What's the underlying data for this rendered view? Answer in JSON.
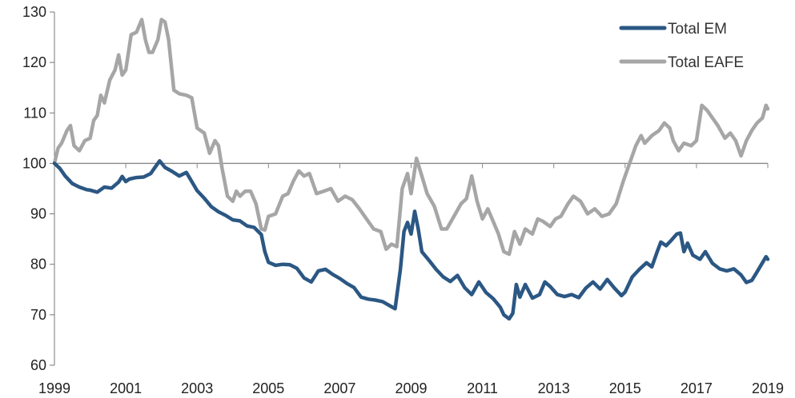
{
  "chart_data": {
    "type": "line",
    "title": "",
    "xlabel": "",
    "ylabel": "",
    "xlim": [
      1999,
      2019
    ],
    "ylim": [
      60,
      130
    ],
    "y_ticks": [
      60,
      70,
      80,
      90,
      100,
      110,
      120,
      130
    ],
    "x_ticks": [
      1999,
      2001,
      2003,
      2005,
      2007,
      2009,
      2011,
      2013,
      2015,
      2017,
      2019
    ],
    "baseline": 100,
    "grid": false,
    "legend_position": "top-right",
    "series": [
      {
        "name": "Total EM",
        "color": "#2b5783",
        "points": [
          [
            1999.0,
            100
          ],
          [
            1999.15,
            99
          ],
          [
            1999.3,
            97.5
          ],
          [
            1999.5,
            96
          ],
          [
            1999.7,
            95.3
          ],
          [
            1999.9,
            94.8
          ],
          [
            2000.0,
            94.7
          ],
          [
            2000.2,
            94.3
          ],
          [
            2000.4,
            95.3
          ],
          [
            2000.6,
            95.1
          ],
          [
            2000.8,
            96.3
          ],
          [
            2000.9,
            97.4
          ],
          [
            2001.0,
            96.4
          ],
          [
            2001.1,
            96.9
          ],
          [
            2001.3,
            97.2
          ],
          [
            2001.5,
            97.3
          ],
          [
            2001.7,
            98.0
          ],
          [
            2001.8,
            99.0
          ],
          [
            2001.95,
            100.5
          ],
          [
            2002.1,
            99.2
          ],
          [
            2002.3,
            98.4
          ],
          [
            2002.5,
            97.5
          ],
          [
            2002.7,
            98.2
          ],
          [
            2002.8,
            97.0
          ],
          [
            2003.0,
            94.6
          ],
          [
            2003.2,
            93.1
          ],
          [
            2003.4,
            91.4
          ],
          [
            2003.6,
            90.4
          ],
          [
            2003.8,
            89.7
          ],
          [
            2004.0,
            88.8
          ],
          [
            2004.2,
            88.6
          ],
          [
            2004.4,
            87.6
          ],
          [
            2004.6,
            87.3
          ],
          [
            2004.8,
            85.9
          ],
          [
            2004.9,
            82.5
          ],
          [
            2005.0,
            80.4
          ],
          [
            2005.2,
            79.8
          ],
          [
            2005.4,
            80.0
          ],
          [
            2005.6,
            79.9
          ],
          [
            2005.8,
            79.2
          ],
          [
            2006.0,
            77.3
          ],
          [
            2006.2,
            76.5
          ],
          [
            2006.4,
            78.7
          ],
          [
            2006.6,
            79.0
          ],
          [
            2006.8,
            78.0
          ],
          [
            2007.0,
            77.2
          ],
          [
            2007.2,
            76.2
          ],
          [
            2007.4,
            75.4
          ],
          [
            2007.6,
            73.5
          ],
          [
            2007.8,
            73.1
          ],
          [
            2008.0,
            72.9
          ],
          [
            2008.2,
            72.6
          ],
          [
            2008.4,
            71.8
          ],
          [
            2008.55,
            71.2
          ],
          [
            2008.7,
            79.0
          ],
          [
            2008.8,
            86.5
          ],
          [
            2008.9,
            88.3
          ],
          [
            2009.0,
            86.0
          ],
          [
            2009.1,
            90.5
          ],
          [
            2009.2,
            87.0
          ],
          [
            2009.3,
            82.5
          ],
          [
            2009.5,
            80.8
          ],
          [
            2009.7,
            79.0
          ],
          [
            2009.9,
            77.5
          ],
          [
            2010.1,
            76.6
          ],
          [
            2010.3,
            77.8
          ],
          [
            2010.5,
            75.4
          ],
          [
            2010.7,
            74.0
          ],
          [
            2010.9,
            76.5
          ],
          [
            2011.1,
            74.4
          ],
          [
            2011.3,
            73.2
          ],
          [
            2011.5,
            71.5
          ],
          [
            2011.6,
            70.0
          ],
          [
            2011.75,
            69.2
          ],
          [
            2011.85,
            70.3
          ],
          [
            2011.95,
            76.0
          ],
          [
            2012.05,
            73.5
          ],
          [
            2012.2,
            76.0
          ],
          [
            2012.4,
            73.3
          ],
          [
            2012.6,
            74.0
          ],
          [
            2012.75,
            76.5
          ],
          [
            2012.9,
            75.6
          ],
          [
            2013.1,
            74.0
          ],
          [
            2013.3,
            73.6
          ],
          [
            2013.5,
            74.0
          ],
          [
            2013.7,
            73.4
          ],
          [
            2013.9,
            75.3
          ],
          [
            2014.1,
            76.5
          ],
          [
            2014.3,
            75.1
          ],
          [
            2014.5,
            77.0
          ],
          [
            2014.7,
            75.3
          ],
          [
            2014.9,
            73.8
          ],
          [
            2015.0,
            74.5
          ],
          [
            2015.2,
            77.5
          ],
          [
            2015.4,
            79.0
          ],
          [
            2015.6,
            80.3
          ],
          [
            2015.75,
            79.5
          ],
          [
            2015.9,
            82.5
          ],
          [
            2016.0,
            84.4
          ],
          [
            2016.15,
            83.7
          ],
          [
            2016.3,
            84.8
          ],
          [
            2016.45,
            86.0
          ],
          [
            2016.55,
            86.2
          ],
          [
            2016.65,
            82.5
          ],
          [
            2016.75,
            84.2
          ],
          [
            2016.9,
            81.8
          ],
          [
            2017.1,
            81.0
          ],
          [
            2017.25,
            82.5
          ],
          [
            2017.45,
            80.2
          ],
          [
            2017.65,
            79.1
          ],
          [
            2017.85,
            78.7
          ],
          [
            2018.05,
            79.1
          ],
          [
            2018.25,
            77.9
          ],
          [
            2018.4,
            76.4
          ],
          [
            2018.55,
            76.8
          ],
          [
            2018.7,
            78.5
          ],
          [
            2018.85,
            80.3
          ],
          [
            2018.95,
            81.5
          ],
          [
            2019.0,
            81.0
          ]
        ]
      },
      {
        "name": "Total EAFE",
        "color": "#a6a6a6",
        "points": [
          [
            1999.0,
            100
          ],
          [
            1999.1,
            103.0
          ],
          [
            1999.2,
            104.0
          ],
          [
            1999.35,
            106.5
          ],
          [
            1999.45,
            107.5
          ],
          [
            1999.55,
            103.5
          ],
          [
            1999.7,
            102.5
          ],
          [
            1999.85,
            104.5
          ],
          [
            2000.0,
            105.0
          ],
          [
            2000.1,
            108.5
          ],
          [
            2000.2,
            109.5
          ],
          [
            2000.3,
            113.5
          ],
          [
            2000.4,
            112.0
          ],
          [
            2000.55,
            116.5
          ],
          [
            2000.7,
            118.5
          ],
          [
            2000.8,
            121.5
          ],
          [
            2000.9,
            117.5
          ],
          [
            2001.0,
            118.5
          ],
          [
            2001.15,
            125.5
          ],
          [
            2001.3,
            126.0
          ],
          [
            2001.45,
            128.5
          ],
          [
            2001.55,
            124.5
          ],
          [
            2001.65,
            122.0
          ],
          [
            2001.75,
            122.0
          ],
          [
            2001.9,
            124.5
          ],
          [
            2002.0,
            128.5
          ],
          [
            2002.1,
            128.0
          ],
          [
            2002.2,
            124.5
          ],
          [
            2002.35,
            114.5
          ],
          [
            2002.5,
            113.8
          ],
          [
            2002.7,
            113.5
          ],
          [
            2002.85,
            113.0
          ],
          [
            2003.0,
            107.0
          ],
          [
            2003.2,
            106.0
          ],
          [
            2003.35,
            102.0
          ],
          [
            2003.5,
            104.5
          ],
          [
            2003.6,
            103.5
          ],
          [
            2003.7,
            99.0
          ],
          [
            2003.85,
            93.5
          ],
          [
            2004.0,
            92.5
          ],
          [
            2004.1,
            94.5
          ],
          [
            2004.2,
            93.5
          ],
          [
            2004.35,
            94.5
          ],
          [
            2004.5,
            94.5
          ],
          [
            2004.65,
            92.0
          ],
          [
            2004.8,
            87.0
          ],
          [
            2004.9,
            86.8
          ],
          [
            2005.0,
            89.5
          ],
          [
            2005.2,
            90.0
          ],
          [
            2005.4,
            93.5
          ],
          [
            2005.55,
            94.0
          ],
          [
            2005.7,
            96.5
          ],
          [
            2005.85,
            98.5
          ],
          [
            2006.0,
            97.5
          ],
          [
            2006.15,
            98.0
          ],
          [
            2006.35,
            94.0
          ],
          [
            2006.55,
            94.5
          ],
          [
            2006.75,
            95.0
          ],
          [
            2006.95,
            92.5
          ],
          [
            2007.15,
            93.5
          ],
          [
            2007.35,
            92.8
          ],
          [
            2007.55,
            91.0
          ],
          [
            2007.75,
            89.0
          ],
          [
            2007.95,
            87.0
          ],
          [
            2008.15,
            86.5
          ],
          [
            2008.3,
            83.0
          ],
          [
            2008.45,
            84.0
          ],
          [
            2008.6,
            83.5
          ],
          [
            2008.75,
            95.0
          ],
          [
            2008.9,
            98.0
          ],
          [
            2009.0,
            94.0
          ],
          [
            2009.15,
            101.0
          ],
          [
            2009.3,
            97.5
          ],
          [
            2009.45,
            94.0
          ],
          [
            2009.65,
            91.5
          ],
          [
            2009.85,
            87.0
          ],
          [
            2010.0,
            87.0
          ],
          [
            2010.2,
            89.5
          ],
          [
            2010.4,
            92.0
          ],
          [
            2010.55,
            93.0
          ],
          [
            2010.7,
            97.5
          ],
          [
            2010.85,
            92.5
          ],
          [
            2011.0,
            89.0
          ],
          [
            2011.15,
            91.0
          ],
          [
            2011.3,
            88.5
          ],
          [
            2011.45,
            86.0
          ],
          [
            2011.6,
            82.5
          ],
          [
            2011.75,
            82.0
          ],
          [
            2011.9,
            86.5
          ],
          [
            2012.05,
            84.0
          ],
          [
            2012.2,
            87.0
          ],
          [
            2012.4,
            86.0
          ],
          [
            2012.55,
            89.0
          ],
          [
            2012.7,
            88.5
          ],
          [
            2012.9,
            87.5
          ],
          [
            2013.05,
            89.0
          ],
          [
            2013.2,
            89.5
          ],
          [
            2013.4,
            92.0
          ],
          [
            2013.55,
            93.5
          ],
          [
            2013.75,
            92.5
          ],
          [
            2013.95,
            90.0
          ],
          [
            2014.15,
            91.0
          ],
          [
            2014.35,
            89.5
          ],
          [
            2014.55,
            90.0
          ],
          [
            2014.75,
            92.0
          ],
          [
            2014.95,
            96.5
          ],
          [
            2015.15,
            100.5
          ],
          [
            2015.3,
            103.5
          ],
          [
            2015.45,
            105.5
          ],
          [
            2015.55,
            104.0
          ],
          [
            2015.75,
            105.5
          ],
          [
            2015.95,
            106.5
          ],
          [
            2016.1,
            108.0
          ],
          [
            2016.25,
            107.0
          ],
          [
            2016.35,
            104.5
          ],
          [
            2016.5,
            102.5
          ],
          [
            2016.65,
            104.0
          ],
          [
            2016.85,
            103.5
          ],
          [
            2017.0,
            104.5
          ],
          [
            2017.15,
            111.5
          ],
          [
            2017.3,
            110.5
          ],
          [
            2017.45,
            109.0
          ],
          [
            2017.6,
            107.5
          ],
          [
            2017.8,
            105.0
          ],
          [
            2017.95,
            106.0
          ],
          [
            2018.1,
            104.5
          ],
          [
            2018.25,
            101.5
          ],
          [
            2018.4,
            104.5
          ],
          [
            2018.55,
            106.5
          ],
          [
            2018.7,
            108.0
          ],
          [
            2018.85,
            109.0
          ],
          [
            2018.95,
            111.5
          ],
          [
            2019.0,
            110.8
          ]
        ]
      }
    ]
  }
}
